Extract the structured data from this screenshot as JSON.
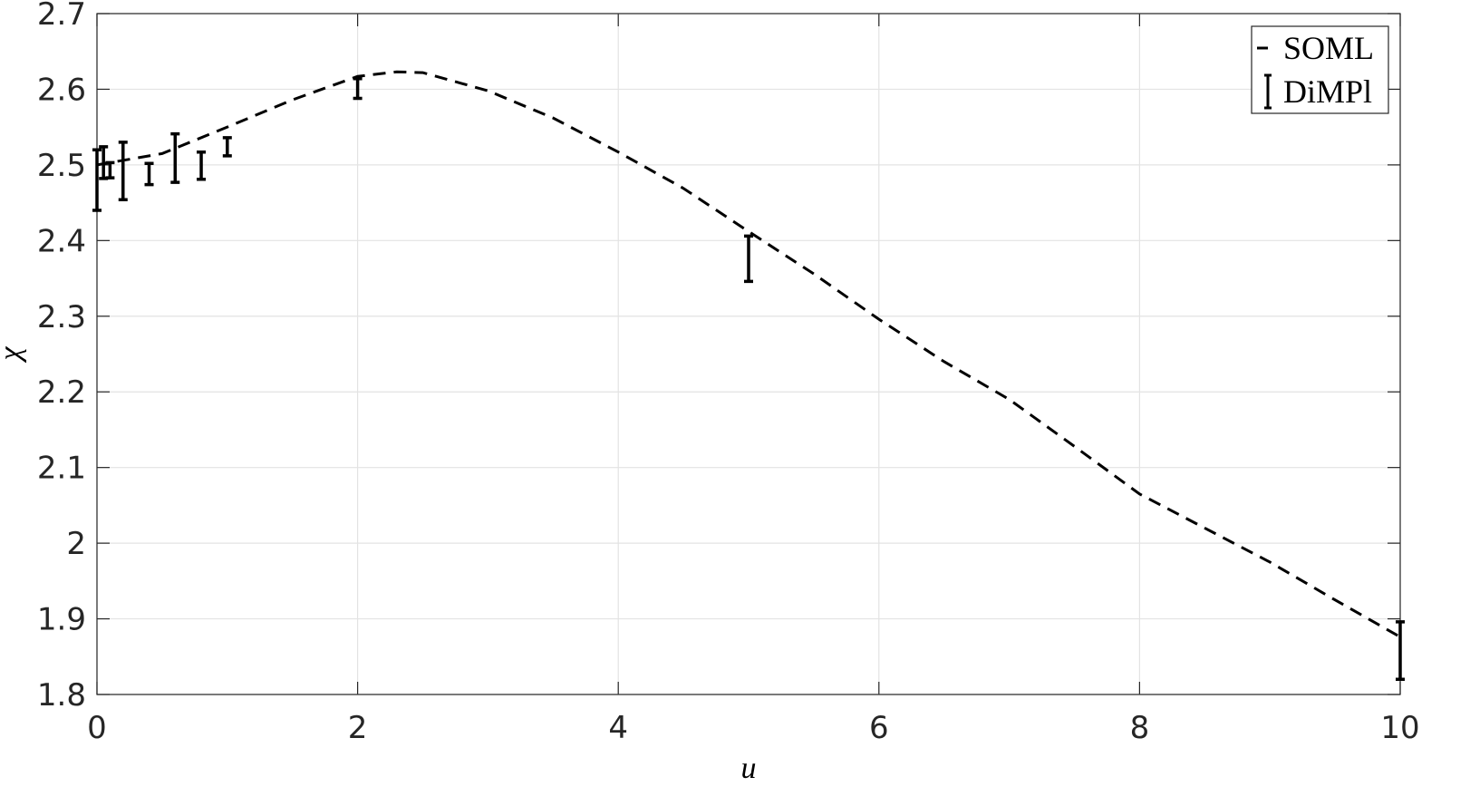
{
  "chart_data": {
    "type": "line",
    "x_label": "u",
    "y_label": "χ",
    "xlim": [
      0,
      10
    ],
    "ylim": [
      1.8,
      2.7
    ],
    "xticks": [
      0,
      2,
      4,
      6,
      8,
      10
    ],
    "yticks": [
      1.8,
      1.9,
      2,
      2.1,
      2.2,
      2.3,
      2.4,
      2.5,
      2.6,
      2.7
    ],
    "grid": true,
    "legend_position": "top-right",
    "series": [
      {
        "name": "SOML",
        "color": "#000000",
        "style": "dashed",
        "x": [
          0,
          0.5,
          1,
          1.5,
          2,
          2.3,
          2.5,
          3,
          3.5,
          4,
          4.5,
          5,
          5.5,
          6,
          6.5,
          7,
          7.5,
          8,
          8.5,
          9,
          9.5,
          10
        ],
        "values": [
          2.5,
          2.515,
          2.55,
          2.586,
          2.617,
          2.623,
          2.622,
          2.598,
          2.562,
          2.517,
          2.469,
          2.412,
          2.356,
          2.296,
          2.24,
          2.19,
          2.128,
          2.065,
          2.02,
          1.975,
          1.925,
          1.876
        ]
      },
      {
        "name": "DiMPl",
        "color": "#000000",
        "style": "errorbar",
        "x": [
          0,
          0.05,
          0.1,
          0.2,
          0.4,
          0.6,
          0.8,
          1,
          2,
          5,
          10
        ],
        "values": [
          2.48,
          2.503,
          2.493,
          2.492,
          2.488,
          2.509,
          2.499,
          2.524,
          2.601,
          2.376,
          1.858
        ],
        "errors": [
          0.04,
          0.021,
          0.01,
          0.038,
          0.014,
          0.032,
          0.018,
          0.012,
          0.013,
          0.03,
          0.038
        ]
      }
    ]
  }
}
